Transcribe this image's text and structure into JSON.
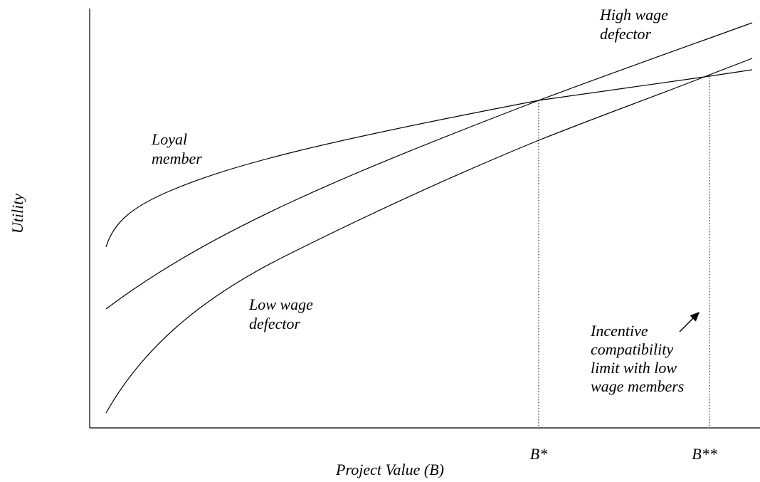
{
  "axes": {
    "x_label": "Project Value (B)",
    "y_label": "Utility"
  },
  "curves": {
    "high_wage": [
      "High wage",
      "defector"
    ],
    "loyal": [
      "Loyal",
      "member"
    ],
    "low_wage": [
      "Low wage",
      "defector"
    ]
  },
  "markers": [
    "B*",
    "B**"
  ],
  "annotation": [
    "Incentive",
    "compatibility",
    "limit with low",
    "wage members"
  ]
}
